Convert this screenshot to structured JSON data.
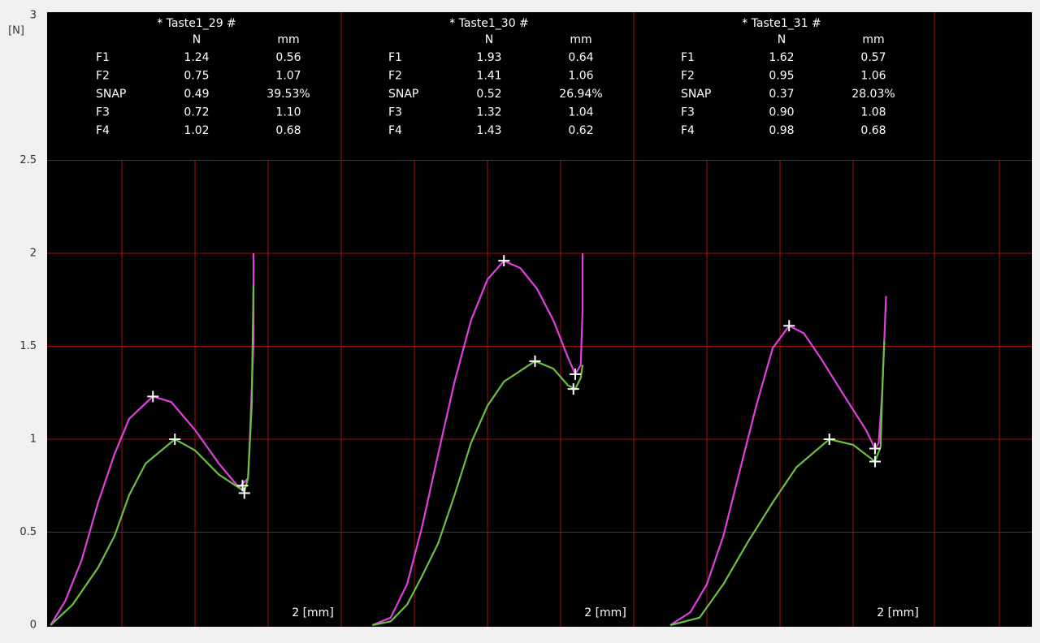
{
  "chart_data": [
    {
      "type": "line",
      "title": "* Taste1_29 #",
      "x_label": "2 [mm]",
      "y_label": "[N]",
      "xlim": [
        0,
        1.6
      ],
      "ylim": [
        0,
        3
      ],
      "yticks": [
        0,
        0.5,
        1,
        1.5,
        2,
        2.5,
        3
      ],
      "table": {
        "columns": [
          "N",
          "mm"
        ],
        "rows": [
          {
            "label": "F1",
            "values": [
              "1.24",
              "0.56"
            ]
          },
          {
            "label": "F2",
            "values": [
              "0.75",
              "1.07"
            ]
          },
          {
            "label": "SNAP",
            "values": [
              "0.49",
              "39.53%"
            ]
          },
          {
            "label": "F3",
            "values": [
              "0.72",
              "1.10"
            ]
          },
          {
            "label": "F4",
            "values": [
              "1.02",
              "0.68"
            ]
          }
        ]
      },
      "series": [
        {
          "color": "#e040e0",
          "x": [
            0.01,
            0.09,
            0.18,
            0.27,
            0.36,
            0.44,
            0.57,
            0.67,
            0.8,
            0.93,
            1.04,
            1.09,
            1.1,
            1.12,
            1.12
          ],
          "values": [
            0,
            0.13,
            0.35,
            0.66,
            0.92,
            1.11,
            1.23,
            1.2,
            1.05,
            0.87,
            0.74,
            0.79,
            1.0,
            1.52,
            2.0
          ]
        },
        {
          "color": "#6cc040",
          "x": [
            0.01,
            0.13,
            0.27,
            0.36,
            0.44,
            0.53,
            0.69,
            0.8,
            0.93,
            1.07,
            1.09,
            1.11,
            1.12
          ],
          "values": [
            0,
            0.11,
            0.31,
            0.48,
            0.7,
            0.87,
            1.0,
            0.94,
            0.81,
            0.72,
            0.79,
            1.18,
            1.83
          ]
        }
      ],
      "markers": {
        "x": [
          0.57,
          1.06,
          0.69,
          1.07
        ],
        "values": [
          1.23,
          0.75,
          1.0,
          0.71
        ]
      }
    },
    {
      "type": "line",
      "title": "* Taste1_30 #",
      "x_label": "2 [mm]",
      "xlim": [
        0,
        1.6
      ],
      "table": {
        "columns": [
          "N",
          "mm"
        ],
        "rows": [
          {
            "label": "F1",
            "values": [
              "1.93",
              "0.64"
            ]
          },
          {
            "label": "F2",
            "values": [
              "1.41",
              "1.06"
            ]
          },
          {
            "label": "SNAP",
            "values": [
              "0.52",
              "26.94%"
            ]
          },
          {
            "label": "F3",
            "values": [
              "1.32",
              "1.04"
            ]
          },
          {
            "label": "F4",
            "values": [
              "1.43",
              "0.62"
            ]
          }
        ]
      },
      "series": [
        {
          "color": "#e040e0",
          "x": [
            0.17,
            0.27,
            0.36,
            0.44,
            0.53,
            0.62,
            0.71,
            0.8,
            0.89,
            0.98,
            1.07,
            1.16,
            1.24,
            1.28,
            1.31,
            1.32,
            1.32
          ],
          "values": [
            0,
            0.04,
            0.22,
            0.52,
            0.92,
            1.31,
            1.64,
            1.86,
            1.96,
            1.92,
            1.81,
            1.64,
            1.44,
            1.35,
            1.4,
            1.7,
            2.0
          ]
        },
        {
          "color": "#6cc040",
          "x": [
            0.17,
            0.27,
            0.36,
            0.44,
            0.53,
            0.62,
            0.71,
            0.8,
            0.89,
            1.06,
            1.16,
            1.24,
            1.28,
            1.31,
            1.32
          ],
          "values": [
            0,
            0.02,
            0.11,
            0.26,
            0.44,
            0.7,
            0.98,
            1.18,
            1.31,
            1.42,
            1.38,
            1.29,
            1.27,
            1.33,
            1.4
          ]
        }
      ],
      "markers": {
        "x": [
          0.89,
          1.28,
          1.06,
          1.27
        ],
        "values": [
          1.96,
          1.35,
          1.42,
          1.27
        ]
      }
    },
    {
      "type": "line",
      "title": "* Taste1_31 #",
      "x_label": "2 [mm]",
      "xlim": [
        0,
        1.6
      ],
      "table": {
        "columns": [
          "N",
          "mm"
        ],
        "rows": [
          {
            "label": "F1",
            "values": [
              "1.62",
              "0.57"
            ]
          },
          {
            "label": "F2",
            "values": [
              "0.95",
              "1.06"
            ]
          },
          {
            "label": "SNAP",
            "values": [
              "0.37",
              "28.03%"
            ]
          },
          {
            "label": "F3",
            "values": [
              "0.90",
              "1.08"
            ]
          },
          {
            "label": "F4",
            "values": [
              "0.98",
              "0.68"
            ]
          }
        ]
      },
      "series": [
        {
          "color": "#e040e0",
          "x": [
            0.2,
            0.31,
            0.4,
            0.49,
            0.58,
            0.67,
            0.76,
            0.85,
            0.93,
            1.02,
            1.16,
            1.27,
            1.32,
            1.34,
            1.36,
            1.38
          ],
          "values": [
            0,
            0.07,
            0.22,
            0.48,
            0.83,
            1.18,
            1.49,
            1.61,
            1.57,
            1.44,
            1.22,
            1.05,
            0.95,
            0.98,
            1.27,
            1.77
          ]
        },
        {
          "color": "#6cc040",
          "x": [
            0.2,
            0.36,
            0.49,
            0.62,
            0.76,
            0.89,
            1.07,
            1.2,
            1.32,
            1.35,
            1.36,
            1.37
          ],
          "values": [
            0,
            0.04,
            0.22,
            0.44,
            0.66,
            0.85,
            1.0,
            0.97,
            0.88,
            0.96,
            1.27,
            1.53
          ]
        }
      ],
      "markers": {
        "x": [
          0.85,
          1.32,
          1.07,
          1.32
        ],
        "values": [
          1.61,
          0.95,
          1.0,
          0.88
        ]
      }
    }
  ]
}
